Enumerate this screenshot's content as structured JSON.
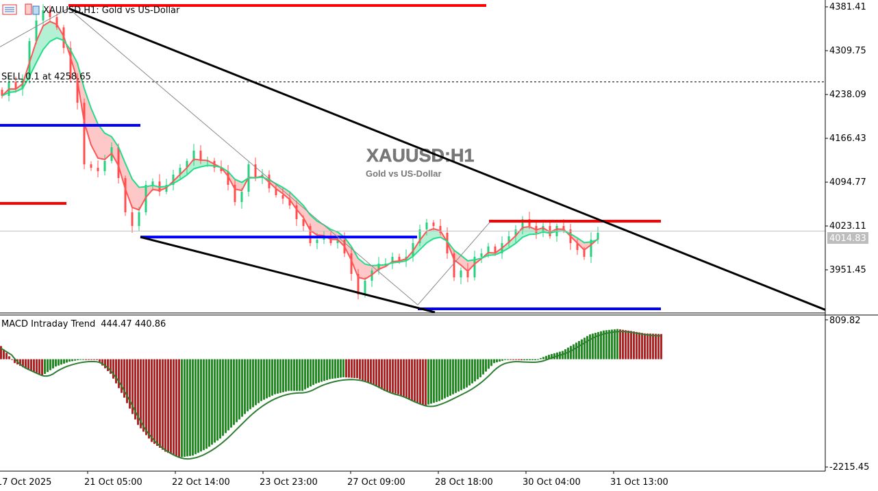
{
  "header": {
    "symbol_caption": "XAUUSD,H1:  Gold vs US-Dollar",
    "watermark_symbol": "XAUUSD:H1",
    "watermark_desc": "Gold vs US-Dollar",
    "order_label": "SELL 0.1 at 4258.65"
  },
  "colors": {
    "bull": "#26d07c",
    "bear": "#ff4d4d",
    "fast_ma": "#ff5555",
    "slow_ma": "#22dd88",
    "resistance": "#ff0000",
    "support": "#0000ff",
    "trendline": "#000000",
    "macd_up": "#228b22",
    "macd_down": "#b22222"
  },
  "chart_data": [
    {
      "type": "candlestick",
      "title": "XAUUSD,H1",
      "price_ticks": [
        4381.41,
        4309.75,
        4238.09,
        4166.43,
        4094.77,
        4023.11,
        3951.45
      ],
      "current_price": "4014.83",
      "order_price": 4258.65,
      "time_labels": [
        "17 Oct 2025",
        "21 Oct 05:00",
        "22 Oct 14:00",
        "23 Oct 23:00",
        "27 Oct 09:00",
        "28 Oct 18:00",
        "30 Oct 04:00",
        "31 Oct 13:00"
      ],
      "closes": [
        4235.8,
        4258.2,
        4247.0,
        4263.8,
        4325.4,
        4359.0,
        4375.8,
        4364.6,
        4347.8,
        4314.2,
        4263.8,
        4224.6,
        4123.9,
        4118.3,
        4112.7,
        4129.5,
        4151.9,
        4101.5,
        4045.5,
        4023.1,
        4045.5,
        4090.3,
        4095.9,
        4079.1,
        4090.3,
        4107.1,
        4118.3,
        4129.5,
        4146.3,
        4129.5,
        4129.5,
        4118.3,
        4112.7,
        4090.3,
        4062.3,
        4079.1,
        4123.9,
        4101.5,
        4107.1,
        4084.7,
        4073.5,
        4067.9,
        4056.7,
        4034.3,
        4023.1,
        3995.1,
        4000.7,
        4006.3,
        3995.1,
        4000.7,
        3978.3,
        3944.7,
        3911.1,
        3933.5,
        3950.3,
        3961.5,
        3961.5,
        3972.7,
        3967.1,
        3972.7,
        3995.1,
        4017.5,
        4028.7,
        4023.1,
        4011.9,
        3978.3,
        3939.1,
        3950.3,
        3939.1,
        3972.7,
        3978.3,
        3989.5,
        3978.3,
        3995.1,
        4006.3,
        4017.5,
        4034.3,
        4023.1,
        4011.9,
        4023.1,
        4006.3,
        4023.1,
        4017.5,
        3995.1,
        3983.8,
        3972.7,
        4000.7,
        4011.9
      ],
      "levels": [
        {
          "color": "resistance",
          "price": 4383.6,
          "from": 10,
          "to": 71
        },
        {
          "color": "resistance",
          "price": 4060.0,
          "from": 0,
          "to": 9.7
        },
        {
          "color": "resistance",
          "price": 4031.0,
          "from": 71.4,
          "to": 96.5
        },
        {
          "color": "support",
          "price": 4187.7,
          "from": 0,
          "to": 20.5
        },
        {
          "color": "support",
          "price": 4005.0,
          "from": 20.5,
          "to": 60.9
        },
        {
          "color": "support",
          "price": 3887.6,
          "from": 61,
          "to": 96.5
        }
      ],
      "trendlines": [
        {
          "p1": [
            10,
            4379
          ],
          "p2": [
            120.5,
            3886
          ],
          "style": "thick"
        },
        {
          "p1": [
            20.5,
            4005
          ],
          "p2": [
            63.5,
            3882
          ],
          "style": "thick"
        },
        {
          "p1": [
            0,
            4316
          ],
          "p2": [
            10,
            4379
          ],
          "style": "thin"
        },
        {
          "p1": [
            10,
            4379
          ],
          "p2": [
            61,
            3894
          ],
          "style": "thin"
        },
        {
          "p1": [
            61,
            3894
          ],
          "p2": [
            71.5,
            4029
          ],
          "style": "thin"
        }
      ]
    },
    {
      "type": "bar",
      "title": "MACD Intraday Trend",
      "values_label": "444.47 440.86",
      "ylim": [
        -2215.45,
        809.82
      ],
      "tick_labels": [
        "809.82",
        "-2215.45"
      ],
      "histogram": [
        270,
        -80,
        -220,
        -340,
        -150,
        -50,
        0,
        -15,
        -300,
        -790,
        -1350,
        -1700,
        -1900,
        -2020,
        -1980,
        -1840,
        -1630,
        -1350,
        -1070,
        -860,
        -720,
        -650,
        -650,
        -500,
        -410,
        -370,
        -390,
        -500,
        -650,
        -720,
        -860,
        -950,
        -860,
        -720,
        -580,
        -370,
        -80,
        0,
        -20,
        -20,
        90,
        170,
        340,
        510,
        590,
        620,
        580,
        530,
        520
      ]
    }
  ]
}
